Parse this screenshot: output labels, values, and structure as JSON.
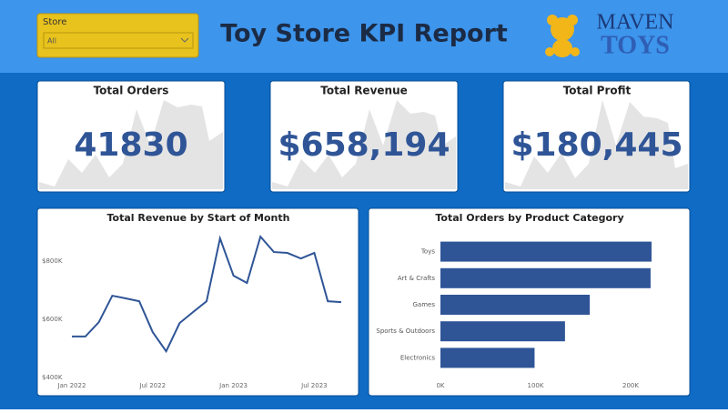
{
  "header": {
    "title": "Toy Store KPI Report",
    "store_label": "Store",
    "store_value": "All",
    "logo_top": "MAVEN",
    "logo_bottom": "TOYS"
  },
  "kpis": [
    {
      "title": "Total Orders",
      "value": "41830"
    },
    {
      "title": "Total Revenue",
      "value": "$658,194"
    },
    {
      "title": "Total Profit",
      "value": "$180,445"
    }
  ],
  "chart_data": [
    {
      "type": "line",
      "title": "Total Revenue by Start of Month",
      "color": "#2f5597",
      "x": [
        "2022-01",
        "2022-02",
        "2022-03",
        "2022-04",
        "2022-05",
        "2022-06",
        "2022-07",
        "2022-08",
        "2022-09",
        "2022-10",
        "2022-11",
        "2022-12",
        "2023-01",
        "2023-02",
        "2023-03",
        "2023-04",
        "2023-05",
        "2023-06",
        "2023-07",
        "2023-08",
        "2023-09"
      ],
      "values": [
        541000,
        541000,
        590000,
        681000,
        672000,
        662000,
        556000,
        490000,
        587000,
        625000,
        662000,
        878000,
        750000,
        725000,
        884000,
        831000,
        828000,
        809000,
        828000,
        662000,
        659000
      ],
      "xlim": [
        "2022-01",
        "2023-09"
      ],
      "xticks": [
        {
          "value": "2022-01",
          "label": "Jan 2022"
        },
        {
          "value": "2022-07",
          "label": "Jul 2022"
        },
        {
          "value": "2023-01",
          "label": "Jan 2023"
        },
        {
          "value": "2023-07",
          "label": "Jul 2023"
        }
      ],
      "ylim": [
        400000,
        900000
      ],
      "yticks": [
        {
          "value": 400000,
          "label": "$400K"
        },
        {
          "value": 600000,
          "label": "$600K"
        },
        {
          "value": 800000,
          "label": "$800K"
        }
      ]
    },
    {
      "type": "hbar",
      "title": "Total Orders by Product Category",
      "color": "#2f5597",
      "categories": [
        "Toys",
        "Art & Crafts",
        "Games",
        "Sports & Outdoors",
        "Electronics"
      ],
      "values": [
        222000,
        221000,
        157000,
        131000,
        99000
      ],
      "xlim": [
        0,
        245000
      ],
      "xticks": [
        {
          "value": 0,
          "label": "0K"
        },
        {
          "value": 100000,
          "label": "100K"
        },
        {
          "value": 200000,
          "label": "200K"
        }
      ]
    }
  ]
}
